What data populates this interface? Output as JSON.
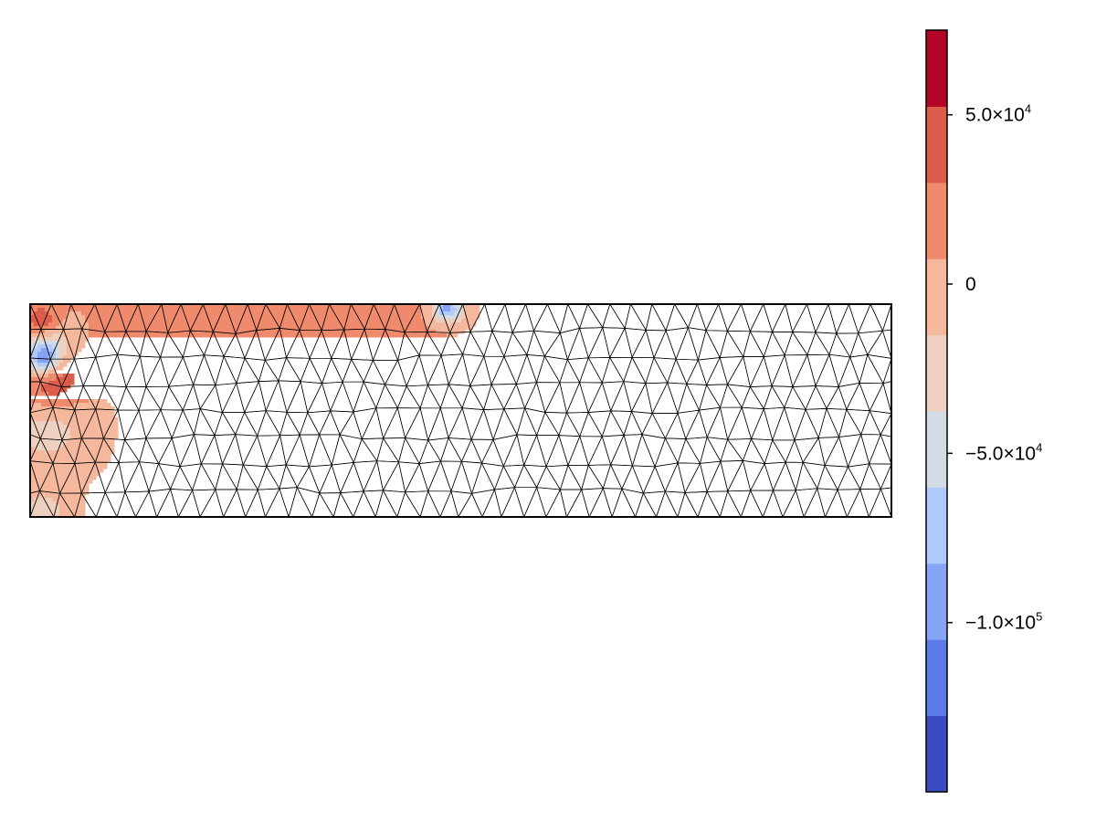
{
  "chart_data": {
    "type": "heatmap",
    "subtype": "triangular-mesh-contourf",
    "title": "",
    "xlabel": "",
    "ylabel": "",
    "axes_visible": false,
    "mesh_visible": true,
    "mesh_color": "#000000",
    "domain": {
      "x": [
        0,
        10
      ],
      "y": [
        0,
        2.5
      ]
    },
    "mesh": {
      "cols": 40,
      "rows": 8
    },
    "base_value": 10000,
    "hotspots": [
      {
        "x": 0.15,
        "y": 2.25,
        "value": 85000,
        "radius": 0.22
      },
      {
        "x": 0.2,
        "y": 2.1,
        "value": -60000,
        "radius": 0.28
      },
      {
        "x": 0.15,
        "y": 1.85,
        "value": -90000,
        "radius": 0.2
      },
      {
        "x": 0.25,
        "y": 1.6,
        "value": 60000,
        "radius": 0.35
      },
      {
        "x": 0.2,
        "y": 1.05,
        "value": -25000,
        "radius": 0.5
      },
      {
        "x": 0.15,
        "y": 0.05,
        "value": -25000,
        "radius": 0.3
      },
      {
        "x": 4.9,
        "y": 2.45,
        "value": -45000,
        "radius": 0.18
      },
      {
        "x": 4.8,
        "y": 2.45,
        "value": -45000,
        "radius": 0.14
      }
    ],
    "colorbar": {
      "orientation": "vertical",
      "position": "right",
      "range": [
        -150000,
        75000
      ],
      "levels": [
        -150000,
        -127500,
        -105000,
        -82500,
        -60000,
        -37500,
        -15000,
        7500,
        30000,
        52500,
        75000
      ],
      "colors": [
        "#3b4cc0",
        "#5b7ae5",
        "#86a4f6",
        "#b0c9fb",
        "#d3dbe7",
        "#eed0c0",
        "#f6b89c",
        "#f08a6c",
        "#dc5d4a",
        "#b40426"
      ],
      "ticks": [
        {
          "value": 50000,
          "mantissa": "5.0×10",
          "exp": "4"
        },
        {
          "value": 0,
          "mantissa": "0",
          "exp": ""
        },
        {
          "value": -50000,
          "mantissa": "−5.0×10",
          "exp": "4"
        },
        {
          "value": -100000,
          "mantissa": "−1.0×10",
          "exp": "5"
        }
      ]
    }
  }
}
